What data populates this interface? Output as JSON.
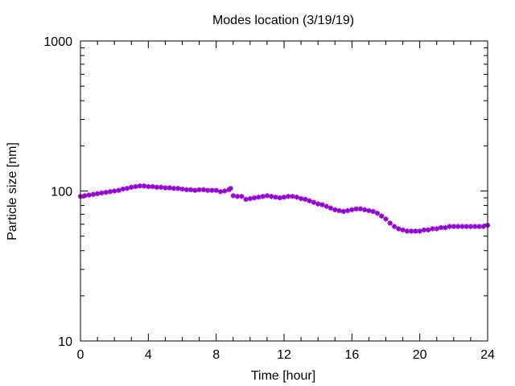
{
  "chart_data": {
    "type": "scatter",
    "title": "Modes location (3/19/19)",
    "xlabel": "Time [hour]",
    "ylabel": "Particle size [nm]",
    "xlim": [
      0,
      24
    ],
    "ylim": [
      10,
      1000
    ],
    "yscale": "log",
    "grid": false,
    "legend": "none",
    "x_ticks": [
      0,
      4,
      8,
      12,
      16,
      20,
      24
    ],
    "x_tick_labels": [
      "0",
      "4",
      "8",
      "12",
      "16",
      "20",
      "24"
    ],
    "y_ticks": [
      10,
      100,
      1000
    ],
    "y_tick_labels": [
      "10",
      "100",
      "1000"
    ],
    "series": [
      {
        "color": "#9400d3",
        "marker": "star",
        "x": [
          0.0,
          0.25,
          0.5,
          0.75,
          1.0,
          1.25,
          1.5,
          1.75,
          2.0,
          2.25,
          2.5,
          2.75,
          3.0,
          3.25,
          3.5,
          3.75,
          4.0,
          4.25,
          4.5,
          4.75,
          5.0,
          5.25,
          5.5,
          5.75,
          6.0,
          6.25,
          6.5,
          6.75,
          7.0,
          7.25,
          7.5,
          7.75,
          8.0,
          8.25,
          8.5,
          8.75,
          8.85,
          9.0,
          9.25,
          9.5,
          9.75,
          10.0,
          10.25,
          10.5,
          10.75,
          11.0,
          11.25,
          11.5,
          11.75,
          12.0,
          12.25,
          12.5,
          12.75,
          13.0,
          13.25,
          13.5,
          13.75,
          14.0,
          14.25,
          14.5,
          14.75,
          15.0,
          15.25,
          15.5,
          15.75,
          16.0,
          16.25,
          16.5,
          16.75,
          17.0,
          17.25,
          17.5,
          17.75,
          18.0,
          18.25,
          18.5,
          18.75,
          19.0,
          19.25,
          19.5,
          19.75,
          20.0,
          20.25,
          20.5,
          20.75,
          21.0,
          21.25,
          21.5,
          21.75,
          22.0,
          22.25,
          22.5,
          22.75,
          23.0,
          23.25,
          23.5,
          23.75,
          24.0
        ],
        "y": [
          92,
          93,
          94,
          95,
          96,
          97,
          98,
          99,
          100,
          101,
          103,
          104,
          106,
          107,
          108,
          108,
          107,
          107,
          106,
          106,
          105,
          105,
          104,
          104,
          103,
          102,
          102,
          101,
          102,
          102,
          101,
          101,
          101,
          99,
          100,
          102,
          104,
          93,
          92,
          92,
          88,
          89,
          90,
          91,
          92,
          93,
          92,
          91,
          90,
          91,
          92,
          92,
          91,
          89,
          88,
          86,
          84,
          82,
          81,
          79,
          77,
          75,
          74,
          73,
          74,
          75,
          76,
          76,
          75,
          74,
          73,
          71,
          68,
          65,
          61,
          58,
          56,
          55,
          54,
          54,
          54,
          54,
          55,
          55,
          56,
          56,
          57,
          57,
          58,
          58,
          58,
          58,
          58,
          58,
          58,
          58,
          58,
          59
        ]
      }
    ]
  }
}
